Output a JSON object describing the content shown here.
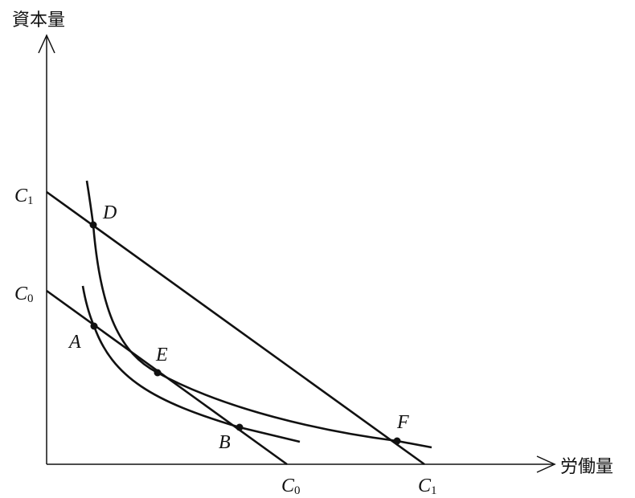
{
  "axes": {
    "y_label": "資本量",
    "x_label": "労働量"
  },
  "cost_labels": {
    "y_c1": {
      "letter": "C",
      "sub": "1"
    },
    "y_c0": {
      "letter": "C",
      "sub": "0"
    },
    "x_c0": {
      "letter": "C",
      "sub": "0"
    },
    "x_c1": {
      "letter": "C",
      "sub": "1"
    }
  },
  "points": {
    "A": "A",
    "B": "B",
    "D": "D",
    "E": "E",
    "F": "F"
  }
}
